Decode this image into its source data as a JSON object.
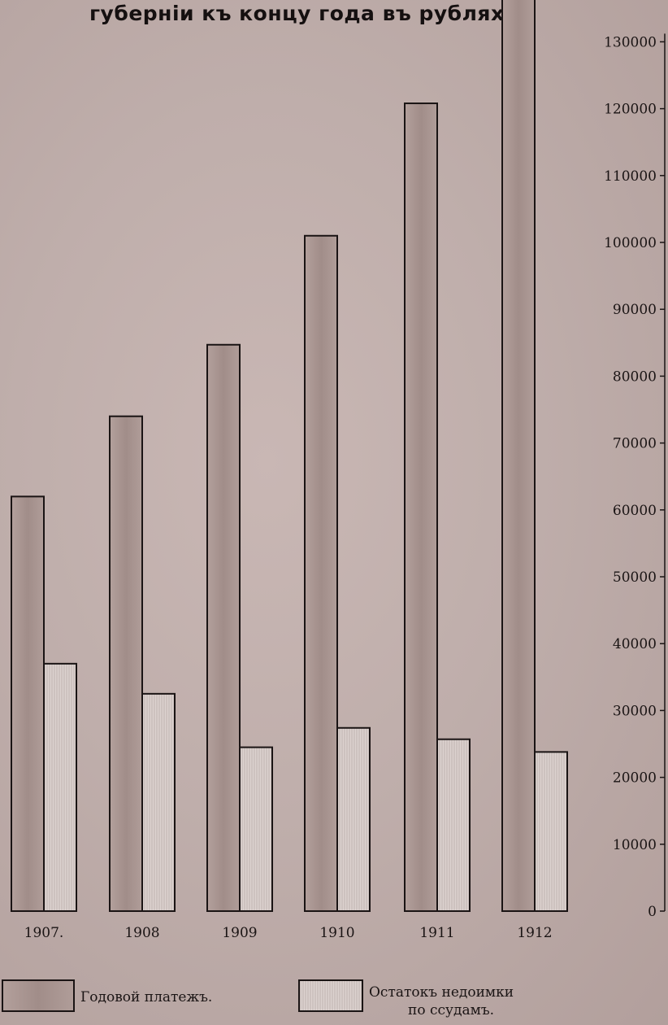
{
  "chart_data": {
    "type": "bar",
    "title": "губерніи къ концу года въ рубляхъ.",
    "categories": [
      "1907.",
      "1908",
      "1909",
      "1910",
      "1911",
      "1912"
    ],
    "series": [
      {
        "name": "Годовой платежъ.",
        "values": [
          62000,
          74000,
          84700,
          101000,
          120800,
          136500
        ]
      },
      {
        "name": "Остатокъ недоимки по ссудамъ.",
        "values": [
          37000,
          32500,
          24500,
          27400,
          25700,
          23800
        ]
      }
    ],
    "yticks": [
      0,
      10000,
      20000,
      30000,
      40000,
      50000,
      60000,
      70000,
      80000,
      90000,
      100000,
      110000,
      120000,
      130000
    ],
    "ylim": [
      0,
      130000
    ],
    "y_axis_position": "right",
    "legend_position": "bottom",
    "colors": {
      "annual_payment": "#a99490",
      "arrears": "#d7cdca"
    }
  },
  "legend": {
    "annual_payment_label": "Годовой платежъ.",
    "arrears_label_line1": "Остатокъ недоимки",
    "arrears_label_line2": "по ссудамъ."
  }
}
